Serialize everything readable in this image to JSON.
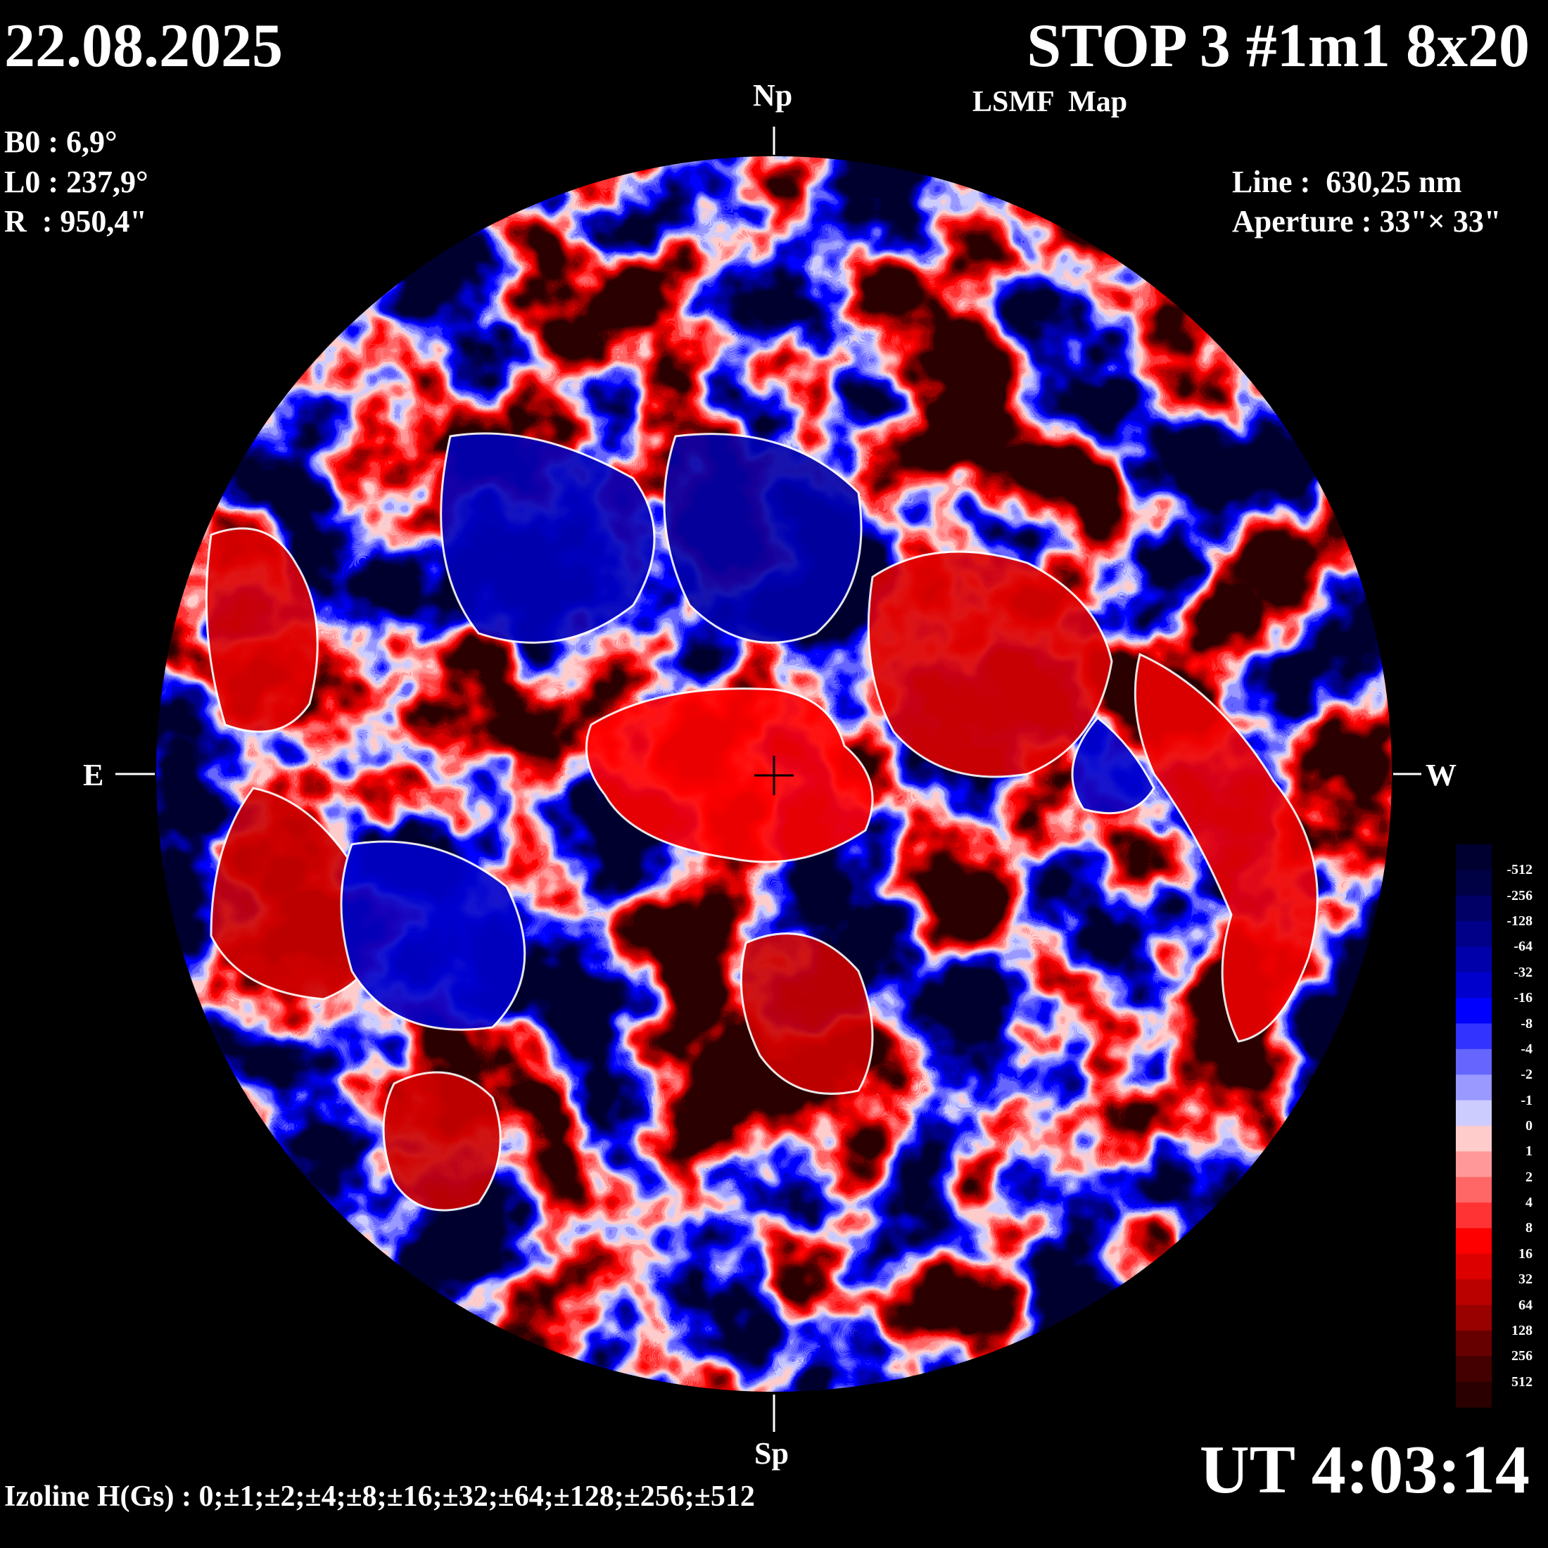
{
  "header": {
    "date": "22.08.2025",
    "title": "STOP 3 #1m1 8x20",
    "subtitle": "LSMF  Map"
  },
  "params": {
    "b0": "B0 : 6,9°",
    "l0": "L0 : 237,9°",
    "r": "R  : 950,4\""
  },
  "instrument": {
    "line": "Line :  630,25 nm",
    "aperture": "Aperture : 33\"× 33\""
  },
  "directions": {
    "north": "Np",
    "south": "Sp",
    "east": "E",
    "west": "W"
  },
  "time": "UT 4:03:14",
  "izoline": "Izoline H(Gs) : 0;±1;±2;±4;±8;±16;±32;±64;±128;±256;±512",
  "colorbar": {
    "labels": [
      "-512",
      "-256",
      "-128",
      "-64",
      "-32",
      "-16",
      "-8",
      "-4",
      "-2",
      "-1",
      "0",
      "1",
      "2",
      "4",
      "8",
      "16",
      "32",
      "64",
      "128",
      "256",
      "512"
    ],
    "colors": [
      "#000030",
      "#000044",
      "#000066",
      "#000088",
      "#0000aa",
      "#0000cc",
      "#0000ff",
      "#3333ff",
      "#6666ff",
      "#9999ff",
      "#ccccff",
      "#ffcccc",
      "#ff9999",
      "#ff6666",
      "#ff3333",
      "#ff0000",
      "#dd0000",
      "#bb0000",
      "#990000",
      "#660000",
      "#440000",
      "#2a0000"
    ]
  },
  "map": {
    "type": "heatmap",
    "quantity": "H(Gs)",
    "contour_color": "#ffffff",
    "center_marker": "crosshair"
  }
}
